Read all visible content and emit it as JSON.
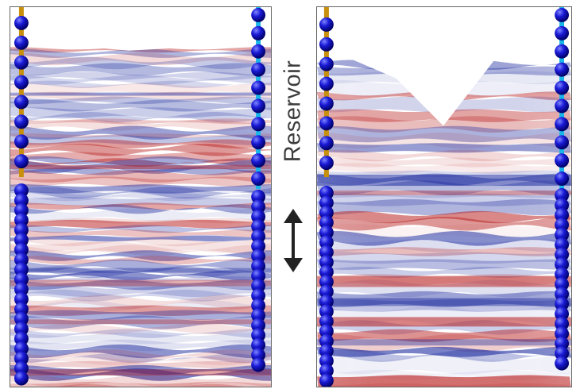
{
  "annotation": {
    "label": "Reservoir",
    "arrow_icon": "double-headed-vertical-arrow-icon"
  },
  "colors": {
    "red": "#b81c1c",
    "blue": "#1c2a9e",
    "bead": "#1a1ad6",
    "bead_shadow": "#000066",
    "rod_left": "#c8900c",
    "rod_right": "#1ab6e8",
    "panel_border": "#666666",
    "label_text": "#3c3c3c"
  }
}
